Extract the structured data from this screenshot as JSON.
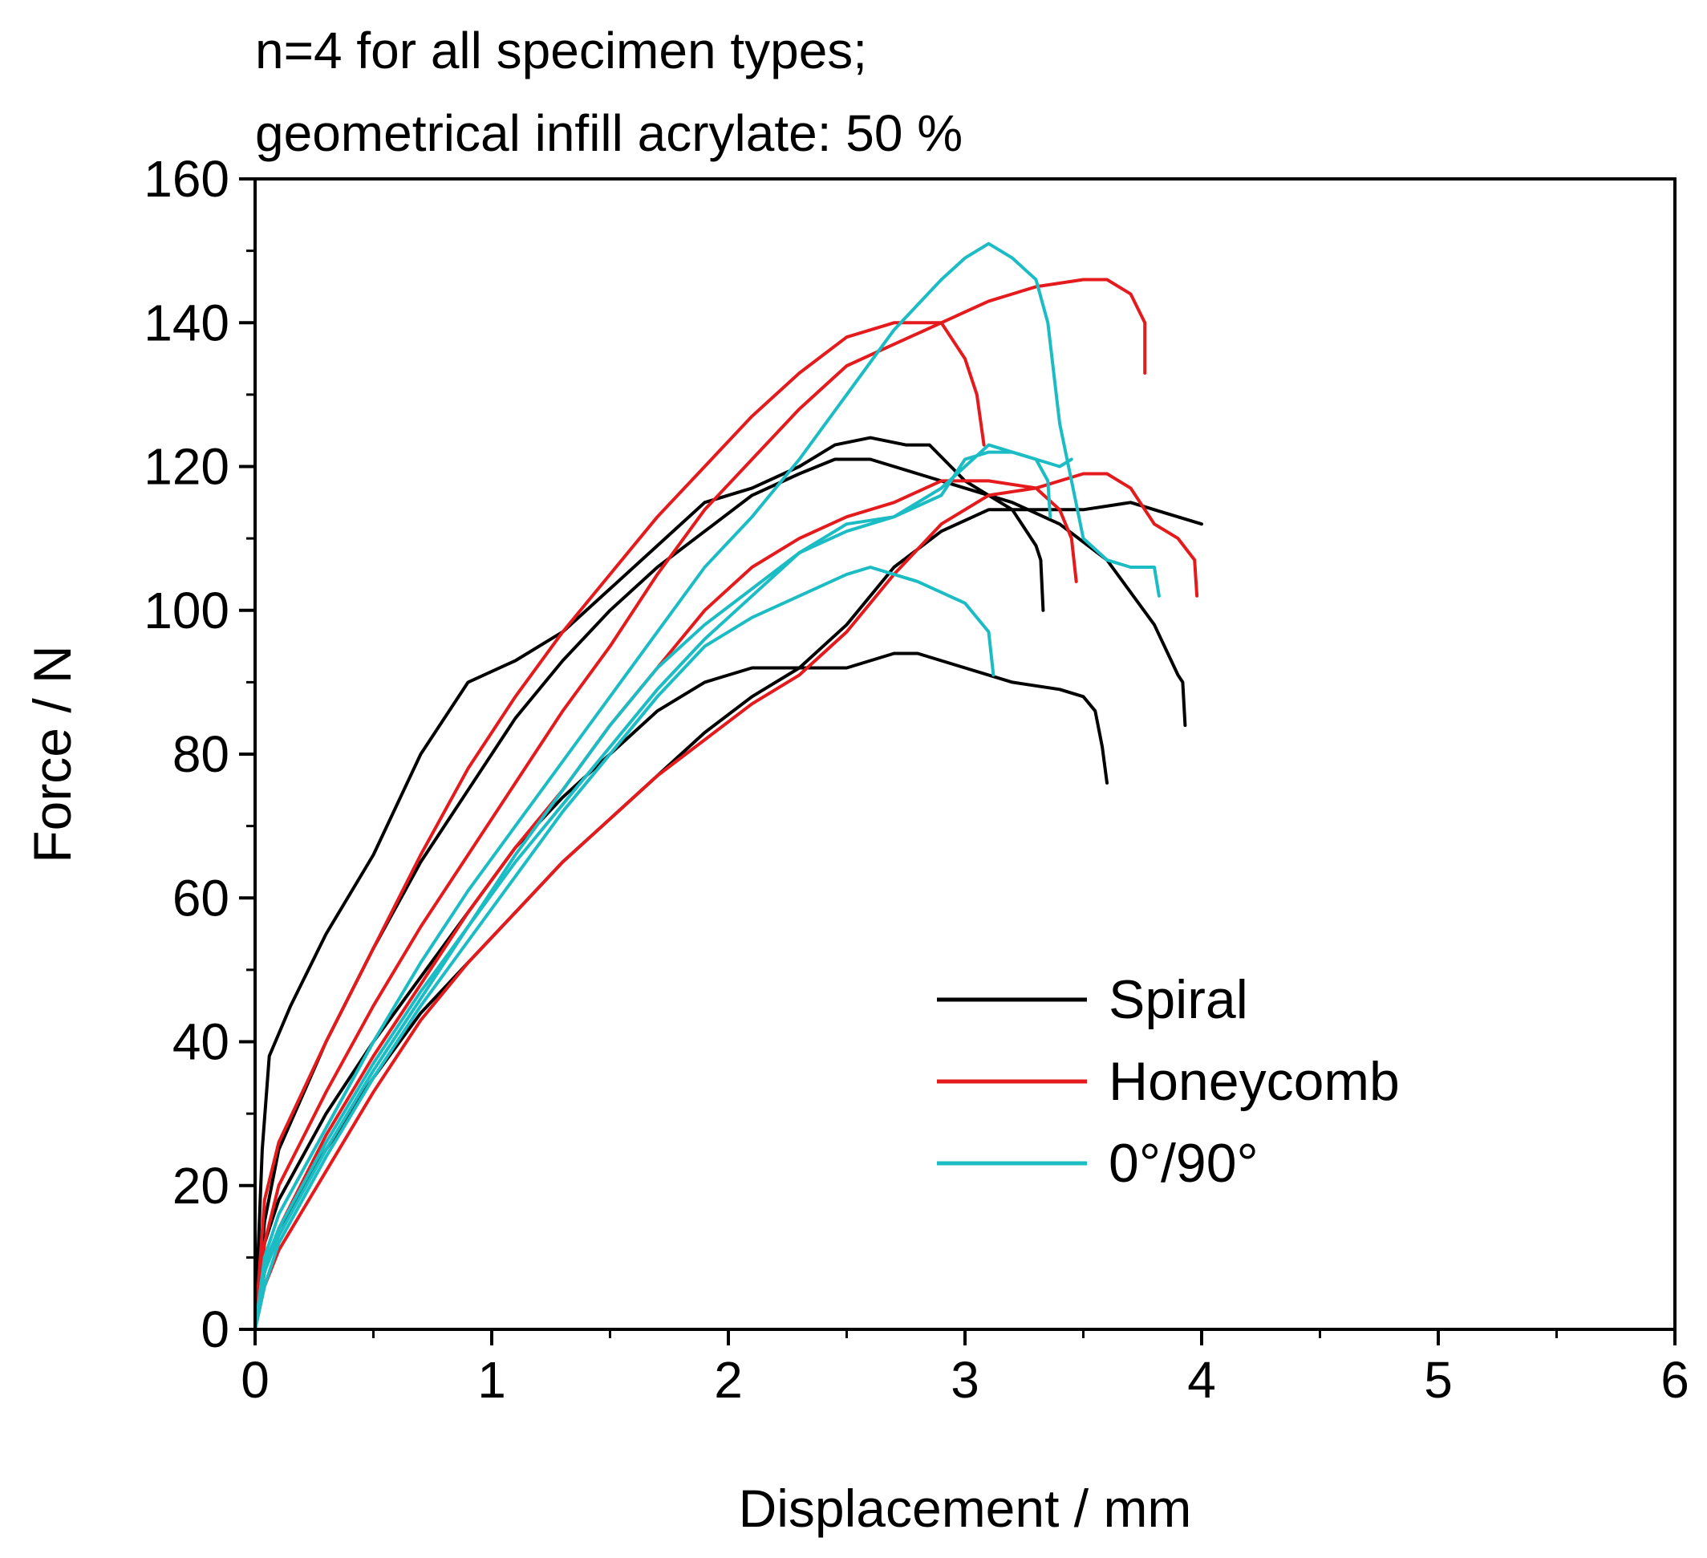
{
  "chart_data": {
    "type": "line",
    "annotation": [
      "n=4 for all specimen types;",
      "geometrical infill acrylate: 50 %"
    ],
    "xlabel": "Displacement / mm",
    "ylabel": "Force / N",
    "xlim": [
      0,
      6
    ],
    "ylim": [
      0,
      160
    ],
    "xticks": [
      0,
      1,
      2,
      3,
      4,
      5,
      6
    ],
    "yticks": [
      0,
      20,
      40,
      60,
      80,
      100,
      120,
      140,
      160
    ],
    "grid": false,
    "legend_position": "lower-right",
    "legend": [
      {
        "label": "Spiral",
        "color": "#000000"
      },
      {
        "label": "Honeycomb",
        "color": "#e41a1c"
      },
      {
        "label": "0°/90°",
        "color": "#1cbcc4"
      }
    ],
    "series": [
      {
        "group": "Spiral",
        "color": "#000000",
        "points": [
          [
            0,
            0
          ],
          [
            0.03,
            25
          ],
          [
            0.06,
            38
          ],
          [
            0.15,
            45
          ],
          [
            0.3,
            55
          ],
          [
            0.5,
            66
          ],
          [
            0.7,
            80
          ],
          [
            0.9,
            90
          ],
          [
            1.1,
            93
          ],
          [
            1.3,
            97
          ],
          [
            1.5,
            103
          ],
          [
            1.7,
            109
          ],
          [
            1.9,
            115
          ],
          [
            2.1,
            117
          ],
          [
            2.3,
            120
          ],
          [
            2.45,
            123
          ],
          [
            2.6,
            124
          ],
          [
            2.75,
            123
          ],
          [
            2.85,
            123
          ],
          [
            3.0,
            118
          ],
          [
            3.1,
            116
          ],
          [
            3.2,
            114
          ],
          [
            3.3,
            109
          ],
          [
            3.32,
            107
          ],
          [
            3.33,
            100
          ]
        ]
      },
      {
        "group": "Spiral",
        "color": "#000000",
        "points": [
          [
            0,
            0
          ],
          [
            0.04,
            15
          ],
          [
            0.1,
            25
          ],
          [
            0.3,
            40
          ],
          [
            0.5,
            53
          ],
          [
            0.7,
            65
          ],
          [
            0.9,
            75
          ],
          [
            1.1,
            85
          ],
          [
            1.3,
            93
          ],
          [
            1.5,
            100
          ],
          [
            1.7,
            106
          ],
          [
            1.9,
            111
          ],
          [
            2.1,
            116
          ],
          [
            2.3,
            119
          ],
          [
            2.45,
            121
          ],
          [
            2.6,
            121
          ],
          [
            2.8,
            119
          ],
          [
            3.0,
            117
          ],
          [
            3.2,
            115
          ],
          [
            3.4,
            112
          ],
          [
            3.6,
            107
          ],
          [
            3.8,
            98
          ],
          [
            3.9,
            91
          ],
          [
            3.92,
            90
          ],
          [
            3.93,
            84
          ]
        ]
      },
      {
        "group": "Spiral",
        "color": "#000000",
        "points": [
          [
            0,
            0
          ],
          [
            0.04,
            12
          ],
          [
            0.1,
            18
          ],
          [
            0.3,
            30
          ],
          [
            0.5,
            40
          ],
          [
            0.7,
            49
          ],
          [
            0.9,
            58
          ],
          [
            1.1,
            67
          ],
          [
            1.3,
            74
          ],
          [
            1.5,
            80
          ],
          [
            1.7,
            86
          ],
          [
            1.9,
            90
          ],
          [
            2.1,
            92
          ],
          [
            2.3,
            92
          ],
          [
            2.5,
            92
          ],
          [
            2.6,
            93
          ],
          [
            2.7,
            94
          ],
          [
            2.8,
            94
          ],
          [
            3.0,
            92
          ],
          [
            3.2,
            90
          ],
          [
            3.4,
            89
          ],
          [
            3.5,
            88
          ],
          [
            3.55,
            86
          ],
          [
            3.58,
            81
          ],
          [
            3.6,
            76
          ]
        ]
      },
      {
        "group": "Spiral",
        "color": "#000000",
        "points": [
          [
            0,
            0
          ],
          [
            0.04,
            8
          ],
          [
            0.1,
            14
          ],
          [
            0.3,
            25
          ],
          [
            0.5,
            35
          ],
          [
            0.7,
            44
          ],
          [
            0.9,
            51
          ],
          [
            1.1,
            58
          ],
          [
            1.3,
            65
          ],
          [
            1.5,
            71
          ],
          [
            1.7,
            77
          ],
          [
            1.9,
            83
          ],
          [
            2.1,
            88
          ],
          [
            2.3,
            92
          ],
          [
            2.5,
            98
          ],
          [
            2.7,
            106
          ],
          [
            2.9,
            111
          ],
          [
            3.1,
            114
          ],
          [
            3.3,
            114
          ],
          [
            3.5,
            114
          ],
          [
            3.7,
            115
          ],
          [
            3.8,
            114
          ],
          [
            4.0,
            112
          ]
        ]
      },
      {
        "group": "Honeycomb",
        "color": "#e41a1c",
        "points": [
          [
            0,
            0
          ],
          [
            0.04,
            18
          ],
          [
            0.1,
            26
          ],
          [
            0.3,
            40
          ],
          [
            0.5,
            53
          ],
          [
            0.7,
            66
          ],
          [
            0.9,
            78
          ],
          [
            1.1,
            88
          ],
          [
            1.3,
            97
          ],
          [
            1.5,
            105
          ],
          [
            1.7,
            113
          ],
          [
            1.9,
            120
          ],
          [
            2.1,
            127
          ],
          [
            2.3,
            133
          ],
          [
            2.5,
            138
          ],
          [
            2.7,
            140
          ],
          [
            2.9,
            140
          ],
          [
            3.0,
            135
          ],
          [
            3.05,
            130
          ],
          [
            3.08,
            123
          ]
        ]
      },
      {
        "group": "Honeycomb",
        "color": "#e41a1c",
        "points": [
          [
            0,
            0
          ],
          [
            0.04,
            12
          ],
          [
            0.1,
            20
          ],
          [
            0.3,
            33
          ],
          [
            0.5,
            45
          ],
          [
            0.7,
            56
          ],
          [
            0.9,
            66
          ],
          [
            1.1,
            76
          ],
          [
            1.3,
            86
          ],
          [
            1.5,
            95
          ],
          [
            1.7,
            105
          ],
          [
            1.9,
            114
          ],
          [
            2.1,
            121
          ],
          [
            2.3,
            128
          ],
          [
            2.5,
            134
          ],
          [
            2.7,
            137
          ],
          [
            2.9,
            140
          ],
          [
            3.1,
            143
          ],
          [
            3.3,
            145
          ],
          [
            3.5,
            146
          ],
          [
            3.6,
            146
          ],
          [
            3.7,
            144
          ],
          [
            3.76,
            140
          ],
          [
            3.76,
            133
          ]
        ]
      },
      {
        "group": "Honeycomb",
        "color": "#e41a1c",
        "points": [
          [
            0,
            0
          ],
          [
            0.04,
            8
          ],
          [
            0.1,
            14
          ],
          [
            0.3,
            27
          ],
          [
            0.5,
            38
          ],
          [
            0.7,
            48
          ],
          [
            0.9,
            58
          ],
          [
            1.1,
            67
          ],
          [
            1.3,
            75
          ],
          [
            1.5,
            84
          ],
          [
            1.7,
            92
          ],
          [
            1.9,
            100
          ],
          [
            2.1,
            106
          ],
          [
            2.3,
            110
          ],
          [
            2.5,
            113
          ],
          [
            2.7,
            115
          ],
          [
            2.9,
            118
          ],
          [
            3.1,
            118
          ],
          [
            3.3,
            117
          ],
          [
            3.4,
            114
          ],
          [
            3.45,
            110
          ],
          [
            3.47,
            104
          ]
        ]
      },
      {
        "group": "Honeycomb",
        "color": "#e41a1c",
        "points": [
          [
            0,
            0
          ],
          [
            0.04,
            6
          ],
          [
            0.1,
            11
          ],
          [
            0.3,
            22
          ],
          [
            0.5,
            33
          ],
          [
            0.7,
            43
          ],
          [
            0.9,
            51
          ],
          [
            1.1,
            58
          ],
          [
            1.3,
            65
          ],
          [
            1.5,
            71
          ],
          [
            1.7,
            77
          ],
          [
            1.9,
            82
          ],
          [
            2.1,
            87
          ],
          [
            2.3,
            91
          ],
          [
            2.5,
            97
          ],
          [
            2.7,
            105
          ],
          [
            2.9,
            112
          ],
          [
            3.1,
            116
          ],
          [
            3.3,
            117
          ],
          [
            3.5,
            119
          ],
          [
            3.6,
            119
          ],
          [
            3.7,
            117
          ],
          [
            3.8,
            112
          ],
          [
            3.9,
            110
          ],
          [
            3.97,
            107
          ],
          [
            3.98,
            102
          ]
        ]
      },
      {
        "group": "0°/90°",
        "color": "#1cbcc4",
        "points": [
          [
            0,
            0
          ],
          [
            0.04,
            10
          ],
          [
            0.1,
            16
          ],
          [
            0.3,
            28
          ],
          [
            0.5,
            40
          ],
          [
            0.7,
            51
          ],
          [
            0.9,
            61
          ],
          [
            1.1,
            70
          ],
          [
            1.3,
            79
          ],
          [
            1.5,
            88
          ],
          [
            1.7,
            97
          ],
          [
            1.9,
            106
          ],
          [
            2.1,
            113
          ],
          [
            2.3,
            121
          ],
          [
            2.5,
            130
          ],
          [
            2.7,
            139
          ],
          [
            2.9,
            146
          ],
          [
            3.0,
            149
          ],
          [
            3.1,
            151
          ],
          [
            3.2,
            149
          ],
          [
            3.3,
            146
          ],
          [
            3.35,
            140
          ],
          [
            3.4,
            126
          ],
          [
            3.45,
            118
          ],
          [
            3.5,
            110
          ],
          [
            3.6,
            107
          ],
          [
            3.7,
            106
          ],
          [
            3.8,
            106
          ],
          [
            3.82,
            102
          ]
        ]
      },
      {
        "group": "0°/90°",
        "color": "#1cbcc4",
        "points": [
          [
            0,
            0
          ],
          [
            0.04,
            8
          ],
          [
            0.1,
            13
          ],
          [
            0.3,
            25
          ],
          [
            0.5,
            36
          ],
          [
            0.7,
            46
          ],
          [
            0.9,
            56
          ],
          [
            1.1,
            65
          ],
          [
            1.3,
            73
          ],
          [
            1.5,
            81
          ],
          [
            1.7,
            89
          ],
          [
            1.9,
            96
          ],
          [
            2.1,
            102
          ],
          [
            2.3,
            108
          ],
          [
            2.5,
            112
          ],
          [
            2.7,
            113
          ],
          [
            2.9,
            116
          ],
          [
            3.0,
            121
          ],
          [
            3.1,
            122
          ],
          [
            3.2,
            122
          ],
          [
            3.3,
            121
          ],
          [
            3.35,
            118
          ],
          [
            3.36,
            113
          ]
        ]
      },
      {
        "group": "0°/90°",
        "color": "#1cbcc4",
        "points": [
          [
            0,
            0
          ],
          [
            0.04,
            9
          ],
          [
            0.1,
            14
          ],
          [
            0.3,
            26
          ],
          [
            0.5,
            37
          ],
          [
            0.7,
            47
          ],
          [
            0.9,
            56
          ],
          [
            1.1,
            66
          ],
          [
            1.3,
            75
          ],
          [
            1.5,
            84
          ],
          [
            1.7,
            92
          ],
          [
            1.9,
            98
          ],
          [
            2.1,
            103
          ],
          [
            2.3,
            108
          ],
          [
            2.5,
            111
          ],
          [
            2.7,
            113
          ],
          [
            2.9,
            117
          ],
          [
            3.1,
            123
          ],
          [
            3.2,
            122
          ],
          [
            3.3,
            121
          ],
          [
            3.4,
            120
          ],
          [
            3.45,
            121
          ]
        ]
      },
      {
        "group": "0°/90°",
        "color": "#1cbcc4",
        "points": [
          [
            0,
            0
          ],
          [
            0.04,
            6
          ],
          [
            0.1,
            12
          ],
          [
            0.3,
            24
          ],
          [
            0.5,
            35
          ],
          [
            0.7,
            45
          ],
          [
            0.9,
            54
          ],
          [
            1.1,
            63
          ],
          [
            1.3,
            72
          ],
          [
            1.5,
            80
          ],
          [
            1.7,
            88
          ],
          [
            1.9,
            95
          ],
          [
            2.1,
            99
          ],
          [
            2.3,
            102
          ],
          [
            2.5,
            105
          ],
          [
            2.6,
            106
          ],
          [
            2.8,
            104
          ],
          [
            3.0,
            101
          ],
          [
            3.1,
            97
          ],
          [
            3.12,
            91
          ]
        ]
      }
    ]
  }
}
